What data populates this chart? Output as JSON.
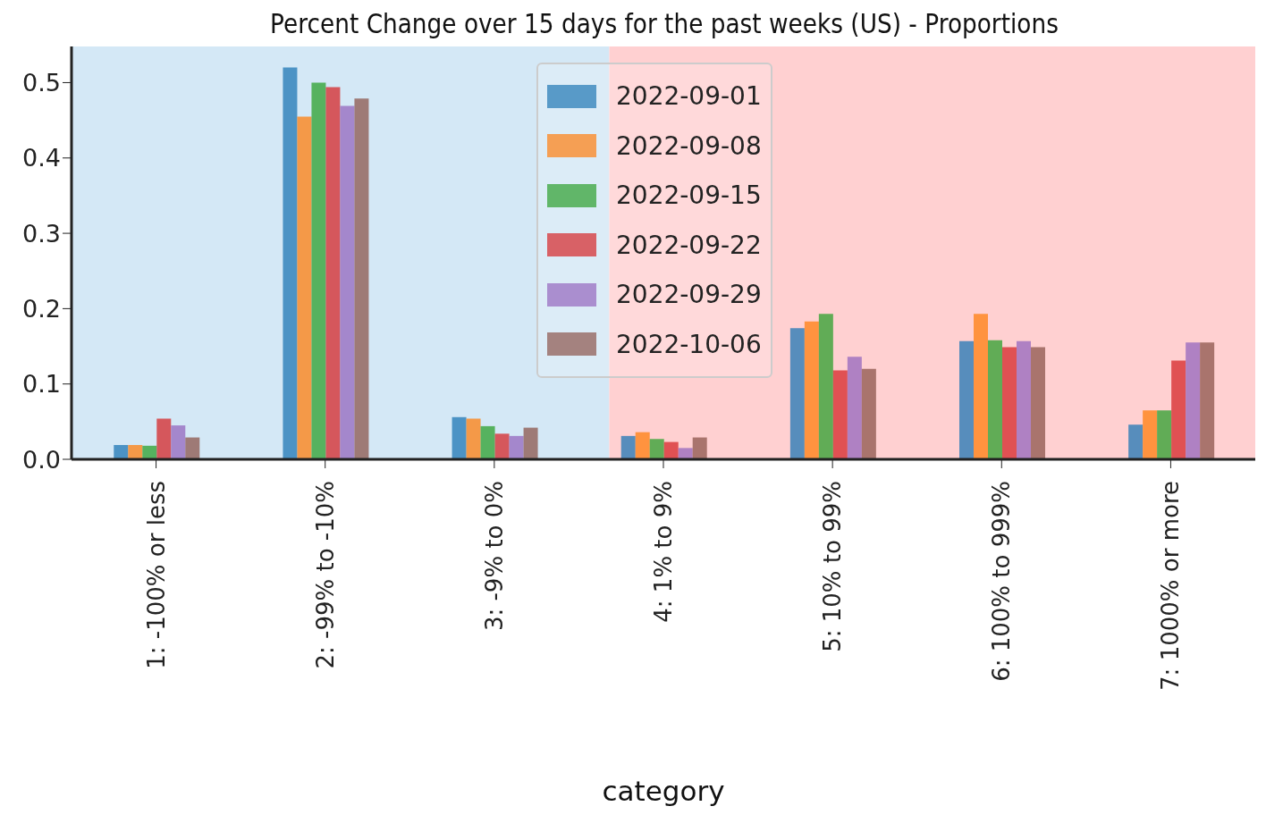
{
  "chart_data": {
    "type": "bar",
    "title": "Percent Change over 15 days for the past weeks (US) - Proportions",
    "xlabel": "category",
    "categories": [
      "1: -100% or less",
      "2: -99% to -10%",
      "3: -9% to 0%",
      "4: 1% to 9%",
      "5: 10% to 99%",
      "6: 100% to 999%",
      "7: 1000% or more"
    ],
    "series": [
      {
        "name": "2022-09-01",
        "color": "#1f77b4",
        "values": [
          0.019,
          0.52,
          0.056,
          0.031,
          0.174,
          0.157,
          0.046
        ]
      },
      {
        "name": "2022-09-08",
        "color": "#ff7f0e",
        "values": [
          0.019,
          0.455,
          0.054,
          0.036,
          0.183,
          0.193,
          0.065
        ]
      },
      {
        "name": "2022-09-15",
        "color": "#2ca02c",
        "values": [
          0.018,
          0.5,
          0.044,
          0.027,
          0.193,
          0.158,
          0.065
        ]
      },
      {
        "name": "2022-09-22",
        "color": "#d62728",
        "values": [
          0.054,
          0.494,
          0.034,
          0.023,
          0.118,
          0.149,
          0.131
        ]
      },
      {
        "name": "2022-09-29",
        "color": "#9467bd",
        "values": [
          0.045,
          0.469,
          0.031,
          0.015,
          0.136,
          0.157,
          0.155
        ]
      },
      {
        "name": "2022-10-06",
        "color": "#8c564b",
        "values": [
          0.029,
          0.479,
          0.042,
          0.029,
          0.12,
          0.149,
          0.155
        ]
      }
    ],
    "ylim": [
      0,
      0.548
    ],
    "yticks": [
      {
        "value": 0,
        "label": "0.0"
      },
      {
        "value": 0.1,
        "label": "0.1"
      },
      {
        "value": 0.2,
        "label": "0.2"
      },
      {
        "value": 0.3,
        "label": "0.3"
      },
      {
        "value": 0.4,
        "label": "0.4"
      },
      {
        "value": 0.5,
        "label": "0.5"
      }
    ],
    "grid": false,
    "legend": "top"
  }
}
